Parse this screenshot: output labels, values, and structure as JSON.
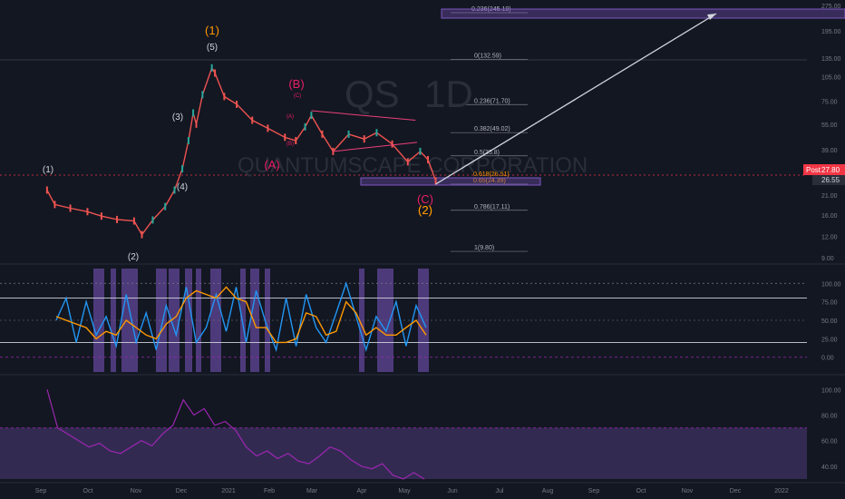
{
  "chart_data": [
    {
      "type": "candlestick",
      "symbol": "QS",
      "timeframe": "1D",
      "company": "QUANTUMSCAPE CORPORATION",
      "scale": "log",
      "y_ticks": [
        "275.00",
        "195.00",
        "135.00",
        "105.00",
        "75.00",
        "55.00",
        "39.00",
        "30.00",
        "21.00",
        "16.00",
        "12.00",
        "9.00"
      ],
      "y_tick_values": [
        275,
        195,
        135,
        105,
        75,
        55,
        39,
        30,
        21,
        16,
        12,
        9
      ],
      "x_ticks": [
        "Sep",
        "Oct",
        "Nov",
        "Dec",
        "2021",
        "Feb",
        "Mar",
        "Apr",
        "May",
        "Jun",
        "Jul",
        "Aug",
        "Sep",
        "Oct",
        "Nov",
        "Dec",
        "2022"
      ],
      "price_label": {
        "name": "Post",
        "value": "27.80"
      },
      "last_price": "26.55",
      "fib_levels": [
        {
          "label": "0.236(245.19)",
          "value": 245.19
        },
        {
          "label": "0(132.59)",
          "value": 132.59
        },
        {
          "label": "0.236(71.70)",
          "value": 71.7
        },
        {
          "label": "0.382(49.02)",
          "value": 49.02
        },
        {
          "label": "0.5(35.8)",
          "value": 35.8
        },
        {
          "label": "0.618(26.51)",
          "value": 26.51
        },
        {
          "label": "0.65(24.39)",
          "value": 24.39
        },
        {
          "label": "0.786(17.11)",
          "value": 17.11
        },
        {
          "label": "1(9.80)",
          "value": 9.8
        }
      ],
      "wave_labels": [
        "(1)",
        "(2)",
        "(3)",
        "(4)",
        "(5)",
        "(1)",
        "(2)",
        "(A)",
        "(B)",
        "(C)",
        "(2)"
      ],
      "sub_wave_labels": [
        "(C)",
        "(A)",
        "(B)"
      ],
      "ohlc_points": [
        {
          "date": "2020-09-05",
          "price": 22.5
        },
        {
          "date": "2020-09-10",
          "price": 18.5
        },
        {
          "date": "2020-09-20",
          "price": 17.6
        },
        {
          "date": "2020-10-01",
          "price": 16.8
        },
        {
          "date": "2020-10-10",
          "price": 15.8
        },
        {
          "date": "2020-10-20",
          "price": 15.1
        },
        {
          "date": "2020-10-31",
          "price": 14.8
        },
        {
          "date": "2020-11-05",
          "price": 12.3
        },
        {
          "date": "2020-11-12",
          "price": 15.0
        },
        {
          "date": "2020-11-20",
          "price": 18.0
        },
        {
          "date": "2020-11-26",
          "price": 22.5
        },
        {
          "date": "2020-12-01",
          "price": 30.0
        },
        {
          "date": "2020-12-05",
          "price": 44.0
        },
        {
          "date": "2020-12-08",
          "price": 64.0
        },
        {
          "date": "2020-12-10",
          "price": 55.0
        },
        {
          "date": "2020-12-14",
          "price": 82.0
        },
        {
          "date": "2020-12-20",
          "price": 118.0
        },
        {
          "date": "2020-12-22",
          "price": 110.0
        },
        {
          "date": "2020-12-28",
          "price": 80.0
        },
        {
          "date": "2021-01-05",
          "price": 72.0
        },
        {
          "date": "2021-01-15",
          "price": 58.0
        },
        {
          "date": "2021-01-25",
          "price": 52.0
        },
        {
          "date": "2021-02-05",
          "price": 46.0
        },
        {
          "date": "2021-02-12",
          "price": 44.0
        },
        {
          "date": "2021-02-18",
          "price": 53.0
        },
        {
          "date": "2021-02-22",
          "price": 62.0
        },
        {
          "date": "2021-03-01",
          "price": 48.0
        },
        {
          "date": "2021-03-08",
          "price": 38.0
        },
        {
          "date": "2021-03-18",
          "price": 48.0
        },
        {
          "date": "2021-03-28",
          "price": 45.0
        },
        {
          "date": "2021-04-05",
          "price": 49.0
        },
        {
          "date": "2021-04-15",
          "price": 42.0
        },
        {
          "date": "2021-04-25",
          "price": 33.0
        },
        {
          "date": "2021-05-03",
          "price": 38.0
        },
        {
          "date": "2021-05-08",
          "price": 34.0
        },
        {
          "date": "2021-05-13",
          "price": 25.5
        }
      ],
      "projection": {
        "from": {
          "date": "2021-05-13",
          "price": 24.39
        },
        "to": {
          "date": "2021-11-20",
          "price": 250
        }
      }
    },
    {
      "type": "line",
      "name": "oscillator",
      "y_ticks": [
        "100.00",
        "75.00",
        "50.00",
        "25.00",
        "0.00"
      ],
      "y_tick_values": [
        100,
        75,
        50,
        25,
        0
      ],
      "levels": [
        80,
        20
      ],
      "bounds": [
        120,
        -20
      ],
      "series": [
        {
          "name": "K",
          "color": "#2196f3",
          "values": [
            50,
            80,
            20,
            75,
            30,
            55,
            15,
            85,
            20,
            60,
            10,
            70,
            30,
            95,
            20,
            40,
            85,
            35,
            95,
            20,
            90,
            45,
            10,
            80,
            15,
            85,
            40,
            20,
            60,
            100,
            55,
            10,
            55,
            35,
            75,
            15,
            70,
            40
          ]
        },
        {
          "name": "D",
          "color": "#ff9800",
          "values": [
            55,
            50,
            45,
            40,
            25,
            35,
            30,
            50,
            40,
            30,
            25,
            45,
            55,
            80,
            90,
            85,
            80,
            95,
            80,
            75,
            40,
            40,
            20,
            20,
            25,
            60,
            55,
            30,
            35,
            75,
            60,
            30,
            40,
            30,
            30,
            40,
            50,
            30
          ]
        }
      ]
    },
    {
      "type": "line",
      "name": "indicator",
      "color": "#9c27b0",
      "y_ticks": [
        "100.00",
        "80.00",
        "60.00",
        "40.00"
      ],
      "y_tick_values": [
        100,
        80,
        60,
        40
      ],
      "zone": [
        70,
        30
      ],
      "values": [
        100,
        70,
        65,
        60,
        55,
        58,
        52,
        50,
        55,
        60,
        56,
        65,
        72,
        92,
        80,
        85,
        72,
        75,
        68,
        55,
        48,
        52,
        46,
        50,
        44,
        42,
        48,
        55,
        52,
        45,
        40,
        38,
        42,
        33,
        30,
        35,
        30
      ]
    }
  ]
}
